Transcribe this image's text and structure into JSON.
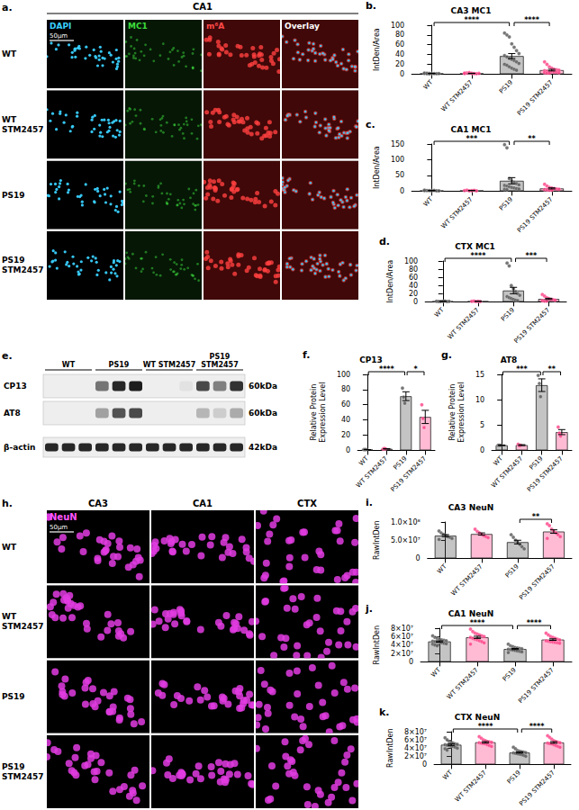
{
  "chart_data": [
    {
      "panel": "b.",
      "type": "bar",
      "title": "CA3 MC1",
      "y_label": "IntDen/Area",
      "categories": [
        "WT",
        "WT STM2457",
        "PS19",
        "PS19 STM2457"
      ],
      "values": [
        1.4,
        1.6,
        37,
        8.2
      ],
      "errors": [
        0.2,
        0.3,
        5,
        1.7
      ],
      "points": [
        [
          2.2,
          1.8,
          1.5,
          1.2,
          1.0,
          0.9,
          1.3,
          1.6,
          1.1,
          0.8
        ],
        [
          1.0,
          2.5,
          3.2,
          1.8,
          1.2,
          0.9,
          1.5,
          2.0
        ],
        [
          84,
          80,
          76,
          62,
          55,
          48,
          42,
          38,
          35,
          32,
          30,
          28,
          25,
          22,
          20,
          18,
          15,
          12,
          10,
          8
        ],
        [
          25,
          20,
          15,
          12,
          10,
          9,
          8,
          7,
          6,
          5,
          5,
          4,
          4,
          3,
          3,
          2,
          2
        ]
      ],
      "colors": [
        "#555555",
        "#ff3d85",
        "#555555",
        "#ff3d85"
      ],
      "ylim": [
        0,
        100
      ],
      "yticks": [
        0,
        20,
        40,
        60,
        80,
        100
      ],
      "grid": false,
      "significance": [
        {
          "from": 0,
          "to": 2,
          "text": "****"
        },
        {
          "from": 2,
          "to": 3,
          "text": "****"
        }
      ]
    },
    {
      "panel": "c.",
      "type": "bar",
      "title": "CA1 MC1",
      "y_label": "IntDen/Area",
      "categories": [
        "WT",
        "WT STM2457",
        "PS19",
        "PS19 STM2457"
      ],
      "values": [
        1.7,
        1.9,
        33,
        8.7
      ],
      "errors": [
        0.3,
        0.3,
        10,
        1.8
      ],
      "points": [
        [
          3,
          2,
          1.5,
          1,
          2.5,
          1.2,
          0.8,
          1.8
        ],
        [
          2,
          3,
          1,
          1.5,
          2.5,
          1.2
        ],
        [
          148,
          138,
          40,
          32,
          28,
          24,
          20,
          18,
          16,
          14,
          12,
          10,
          8,
          7,
          6,
          5
        ],
        [
          22,
          16,
          12,
          10,
          8,
          7,
          6,
          5,
          4,
          3,
          3
        ]
      ],
      "colors": [
        "#555555",
        "#ff3d85",
        "#555555",
        "#ff3d85"
      ],
      "ylim": [
        0,
        150
      ],
      "yticks": [
        0,
        50,
        100,
        150
      ],
      "grid": false,
      "significance": [
        {
          "from": 0,
          "to": 2,
          "text": "***"
        },
        {
          "from": 2,
          "to": 3,
          "text": "**"
        }
      ]
    },
    {
      "panel": "d.",
      "type": "bar",
      "title": "CTX MC1",
      "y_label": "IntDen/Area",
      "categories": [
        "WT",
        "WT STM2457",
        "PS19",
        "PS19 STM2457"
      ],
      "values": [
        1.2,
        1.3,
        27.7,
        7.2
      ],
      "errors": [
        0.2,
        0.2,
        7.8,
        1.6
      ],
      "points": [
        [
          1.5,
          1,
          0.8,
          1.2,
          2,
          0.6,
          1.1
        ],
        [
          1.2,
          1.8,
          0.9,
          1.5,
          1.0
        ],
        [
          95,
          88,
          40,
          32,
          25,
          20,
          16,
          13,
          10,
          8,
          6,
          4,
          3
        ],
        [
          18,
          14,
          10,
          8,
          6,
          5,
          4,
          3,
          2,
          2
        ]
      ],
      "colors": [
        "#555555",
        "#ff3d85",
        "#555555",
        "#ff3d85"
      ],
      "ylim": [
        0,
        100
      ],
      "yticks": [
        0,
        20,
        40,
        60,
        80,
        100
      ],
      "grid": false,
      "significance": [
        {
          "from": 0,
          "to": 2,
          "text": "****"
        },
        {
          "from": 2,
          "to": 3,
          "text": "***"
        }
      ]
    },
    {
      "panel": "f.",
      "type": "bar",
      "title": "CP13",
      "y_label": "Relative Protein Expression Level",
      "categories": [
        "WT",
        "WT STM2457",
        "PS19",
        "PS19 STM2457"
      ],
      "values": [
        1,
        2.0,
        71.3,
        44
      ],
      "errors": [
        0.05,
        0.3,
        5.8,
        8.7
      ],
      "points": [
        [
          1.0,
          1.0,
          1.0
        ],
        [
          1.5,
          2.5,
          2.0
        ],
        [
          82,
          70,
          62
        ],
        [
          60,
          42,
          30
        ]
      ],
      "colors": [
        "#555555",
        "#ff3d85",
        "#555555",
        "#ff3d85"
      ],
      "ylim": [
        0,
        100
      ],
      "yticks": [
        0,
        20,
        40,
        60,
        80,
        100
      ],
      "grid": false,
      "significance": [
        {
          "from": 0,
          "to": 2,
          "text": "****"
        },
        {
          "from": 2,
          "to": 3,
          "text": "*"
        }
      ]
    },
    {
      "panel": "g.",
      "type": "bar",
      "title": "AT8",
      "y_label": "Relative Protein Expression Level",
      "categories": [
        "WT",
        "WT STM2457",
        "PS19",
        "PS19 STM2457"
      ],
      "values": [
        1,
        1.03,
        12.87,
        3.6
      ],
      "errors": [
        0.05,
        0.09,
        1.25,
        0.5
      ],
      "points": [
        [
          1,
          1,
          1
        ],
        [
          1.2,
          0.9,
          1.0
        ],
        [
          14.8,
          13.2,
          10.6
        ],
        [
          4.6,
          3.4,
          2.8
        ]
      ],
      "colors": [
        "#555555",
        "#ff3d85",
        "#555555",
        "#ff3d85"
      ],
      "ylim": [
        0,
        15
      ],
      "yticks": [
        0,
        5,
        10,
        15
      ],
      "grid": false,
      "significance": [
        {
          "from": 0,
          "to": 2,
          "text": "***"
        },
        {
          "from": 2,
          "to": 3,
          "text": "**"
        }
      ]
    },
    {
      "panel": "i.",
      "type": "bar",
      "title": "CA3 NeuN",
      "y_label": "RawIntDen",
      "categories": [
        "WT",
        "WT STM2457",
        "PS19",
        "PS19 STM2457"
      ],
      "values": [
        62400000,
        67000000,
        44700000,
        73750000
      ],
      "errors": [
        2800000,
        3000000,
        5100000,
        4800000
      ],
      "points": [
        [
          75000000,
          70000000,
          66000000,
          63000000,
          60000000,
          58000000,
          55000000,
          52000000
        ],
        [
          80000000,
          74000000,
          70000000,
          66000000,
          62000000,
          60000000,
          57000000
        ],
        [
          65000000,
          58000000,
          50000000,
          44000000,
          38000000,
          32000000,
          26000000
        ],
        [
          95000000,
          90000000,
          80000000,
          75000000,
          70000000,
          65000000,
          60000000,
          55000000
        ]
      ],
      "colors": [
        "#555555",
        "#ff3d85",
        "#555555",
        "#ff3d85"
      ],
      "ylim": [
        0,
        100000000
      ],
      "yticks": [
        0,
        {
          "value": 50000000,
          "label": "5.0×10⁷"
        },
        {
          "value": 100000000,
          "label": "1.0×10⁸"
        }
      ],
      "grid": false,
      "significance": [
        {
          "from": 2,
          "to": 3,
          "text": "**"
        }
      ]
    },
    {
      "panel": "j.",
      "type": "bar",
      "title": "CA1 NeuN",
      "y_label": "RawIntDen",
      "categories": [
        "WT",
        "WT STM2457",
        "PS19",
        "PS19 STM2457"
      ],
      "values": [
        48500000,
        58300000,
        30500000,
        52900000
      ],
      "errors": [
        1400000,
        2600000,
        1300000,
        1800000
      ],
      "points": [
        [
          62000000,
          58000000,
          56000000,
          54000000,
          52000000,
          51000000,
          50000000,
          49000000,
          48000000,
          47000000,
          46000000,
          45000000,
          44000000,
          43000000,
          42000000,
          40000000,
          38000000
        ],
        [
          78000000,
          72000000,
          68000000,
          66000000,
          64000000,
          62000000,
          60000000,
          58000000,
          56000000,
          54000000,
          52000000,
          50000000,
          48000000,
          45000000,
          42000000
        ],
        [
          42000000,
          38000000,
          36000000,
          34000000,
          33000000,
          32000000,
          31000000,
          30000000,
          29000000,
          28000000,
          27000000,
          26000000,
          25000000,
          24000000,
          22000000
        ],
        [
          68000000,
          64000000,
          60000000,
          58000000,
          56000000,
          54000000,
          52000000,
          50000000,
          49000000,
          48000000,
          47000000,
          46000000,
          45000000,
          44000000
        ]
      ],
      "colors": [
        "#555555",
        "#ff3d85",
        "#555555",
        "#ff3d85"
      ],
      "ylim": [
        0,
        80000000
      ],
      "yticks": [
        0,
        {
          "value": 20000000,
          "label": "2×10⁷"
        },
        {
          "value": 40000000,
          "label": "4×10⁷"
        },
        {
          "value": 60000000,
          "label": "6×10⁷"
        },
        {
          "value": 80000000,
          "label": "8×10⁷"
        }
      ],
      "grid": false,
      "significance": [
        {
          "from": 0,
          "to": 2,
          "text": "****"
        },
        {
          "from": 2,
          "to": 3,
          "text": "****"
        }
      ]
    },
    {
      "panel": "k.",
      "type": "bar",
      "title": "CTX NeuN",
      "y_label": "RawIntDen",
      "categories": [
        "WT",
        "WT STM2457",
        "PS19",
        "PS19 STM2457"
      ],
      "values": [
        48200000,
        54200000,
        29100000,
        53700000
      ],
      "errors": [
        1900000,
        1800000,
        1500000,
        2000000
      ],
      "points": [
        [
          65000000,
          60000000,
          56000000,
          54000000,
          52000000,
          50000000,
          49000000,
          48000000,
          47000000,
          46000000,
          45000000,
          44000000,
          42000000,
          40000000,
          38000000,
          35000000
        ],
        [
          68000000,
          64000000,
          60000000,
          58000000,
          56000000,
          55000000,
          54000000,
          53000000,
          52000000,
          51000000,
          50000000,
          48000000,
          46000000,
          44000000
        ],
        [
          42000000,
          38000000,
          34000000,
          32000000,
          31000000,
          30000000,
          29000000,
          28000000,
          27000000,
          26000000,
          25000000,
          24000000,
          22000000,
          20000000
        ],
        [
          70000000,
          66000000,
          62000000,
          58000000,
          56000000,
          54000000,
          53000000,
          52000000,
          51000000,
          50000000,
          48000000,
          46000000,
          44000000,
          42000000
        ]
      ],
      "colors": [
        "#555555",
        "#ff3d85",
        "#555555",
        "#ff3d85"
      ],
      "ylim": [
        0,
        80000000
      ],
      "yticks": [
        0,
        {
          "value": 20000000,
          "label": "2×10⁷"
        },
        {
          "value": 40000000,
          "label": "4×10⁷"
        },
        {
          "value": 60000000,
          "label": "6×10⁷"
        },
        {
          "value": 80000000,
          "label": "8×10⁷"
        }
      ],
      "grid": false,
      "significance": [
        {
          "from": 0,
          "to": 2,
          "text": "****"
        },
        {
          "from": 2,
          "to": 3,
          "text": "****"
        }
      ]
    }
  ],
  "image_panels": [
    {
      "panel": "a.",
      "title": "CA1",
      "columns": [
        "DAPI",
        "MC1",
        "m⁶A",
        "Overlay"
      ],
      "rows": [
        "WT",
        "WT STM2457",
        "PS19",
        "PS19 STM2457"
      ],
      "scale_bar": "50μm"
    },
    {
      "panel": "e.",
      "groups": [
        "WT",
        "PS19",
        "WT STM2457",
        "PS19 STM2457"
      ],
      "blots": [
        {
          "label": "CP13",
          "size": "60kDa",
          "bands": [
            0,
            0,
            0,
            0.55,
            0.9,
            0.95,
            0,
            0,
            0.05,
            0.75,
            0.5,
            0.85
          ]
        },
        {
          "label": "AT8",
          "size": "60kDa",
          "bands": [
            0,
            0,
            0,
            0.35,
            0.7,
            0.75,
            0,
            0,
            0,
            0.25,
            0.15,
            0.3
          ]
        },
        {
          "label": "β-actin",
          "size": "42kDa",
          "bands": [
            0.9,
            0.9,
            0.9,
            0.9,
            0.9,
            0.9,
            0.9,
            0.9,
            0.9,
            0.9,
            0.9,
            0.9
          ]
        }
      ]
    },
    {
      "panel": "h.",
      "stain": "NeuN",
      "columns": [
        "CA3",
        "CA1",
        "CTX"
      ],
      "rows": [
        "WT",
        "WT STM2457",
        "PS19",
        "PS19 STM2457"
      ],
      "scale_bar": "50μm"
    }
  ]
}
